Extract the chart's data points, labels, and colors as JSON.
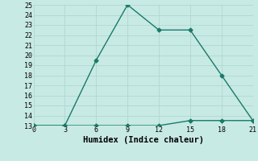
{
  "line1_x": [
    0,
    3,
    6,
    9,
    12,
    15,
    18,
    21
  ],
  "line1_y": [
    13,
    13,
    19.5,
    25,
    22.5,
    22.5,
    18,
    13.5
  ],
  "line2_x": [
    0,
    3,
    6,
    9,
    12,
    15,
    18,
    21
  ],
  "line2_y": [
    13,
    13,
    13,
    13,
    13,
    13.5,
    13.5,
    13.5
  ],
  "line_color": "#1a7a6a",
  "bg_color": "#c8eae4",
  "grid_color": "#b0d8d0",
  "xlabel": "Humidex (Indice chaleur)",
  "xlim": [
    0,
    21
  ],
  "ylim": [
    13,
    25
  ],
  "xticks": [
    0,
    3,
    6,
    9,
    12,
    15,
    18,
    21
  ],
  "yticks": [
    13,
    14,
    15,
    16,
    17,
    18,
    19,
    20,
    21,
    22,
    23,
    24,
    25
  ],
  "marker": "D",
  "markersize": 2.5,
  "linewidth": 1.0,
  "xlabel_fontsize": 7.5,
  "tick_fontsize": 6,
  "font_family": "monospace"
}
